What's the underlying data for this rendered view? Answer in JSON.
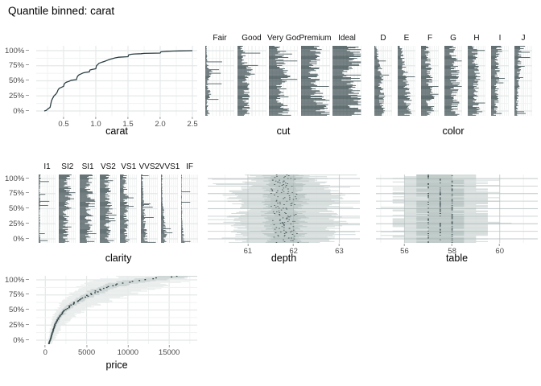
{
  "title": "Quantile binned: carat",
  "colors": {
    "bar": "#2c3e42",
    "line": "#2c3e42",
    "median": "#36464a",
    "grid_major": "#e4e8e8",
    "grid_minor": "#f1f3f3",
    "tick_text": "#4d4d4d",
    "title_text": "#000000"
  },
  "y_axis": {
    "labels": [
      "100%",
      "75%",
      "50%",
      "25%",
      "0%"
    ],
    "percent_ticks": [
      100,
      75,
      50,
      25,
      0
    ]
  },
  "chart_data": [
    {
      "id": "carat",
      "type": "line",
      "title": "carat",
      "x_ticks": [
        "0.5",
        "1.0",
        "1.5",
        "2.0",
        "2.5"
      ],
      "x_tick_values": [
        0.5,
        1.0,
        1.5,
        2.0,
        2.5
      ],
      "x_minor": [
        0.25,
        0.75,
        1.25,
        1.75,
        2.25
      ],
      "x_domain": [
        0.075,
        2.575
      ],
      "ylim": [
        0,
        100
      ],
      "points": [
        [
          0.2,
          0
        ],
        [
          0.23,
          1
        ],
        [
          0.25,
          3
        ],
        [
          0.29,
          6
        ],
        [
          0.3,
          11
        ],
        [
          0.31,
          16
        ],
        [
          0.32,
          19
        ],
        [
          0.33,
          21
        ],
        [
          0.34,
          23
        ],
        [
          0.35,
          25
        ],
        [
          0.36,
          26
        ],
        [
          0.38,
          28
        ],
        [
          0.4,
          31
        ],
        [
          0.41,
          34
        ],
        [
          0.42,
          36
        ],
        [
          0.44,
          38
        ],
        [
          0.46,
          39
        ],
        [
          0.5,
          41
        ],
        [
          0.51,
          45
        ],
        [
          0.53,
          47
        ],
        [
          0.55,
          48
        ],
        [
          0.58,
          49
        ],
        [
          0.6,
          50
        ],
        [
          0.62,
          51
        ],
        [
          0.7,
          52
        ],
        [
          0.71,
          56
        ],
        [
          0.72,
          58
        ],
        [
          0.74,
          60
        ],
        [
          0.76,
          61
        ],
        [
          0.8,
          63
        ],
        [
          0.84,
          64
        ],
        [
          0.9,
          65
        ],
        [
          0.91,
          68
        ],
        [
          0.95,
          69
        ],
        [
          1.0,
          70
        ],
        [
          1.01,
          75
        ],
        [
          1.03,
          77
        ],
        [
          1.05,
          79
        ],
        [
          1.1,
          81
        ],
        [
          1.13,
          82
        ],
        [
          1.2,
          85
        ],
        [
          1.23,
          86
        ],
        [
          1.3,
          88
        ],
        [
          1.35,
          89
        ],
        [
          1.5,
          90
        ],
        [
          1.51,
          93
        ],
        [
          1.55,
          94
        ],
        [
          1.6,
          94.5
        ],
        [
          1.7,
          95
        ],
        [
          1.75,
          95.5
        ],
        [
          2.0,
          96
        ],
        [
          2.01,
          98
        ],
        [
          2.05,
          98.5
        ],
        [
          2.1,
          99
        ],
        [
          2.2,
          99.3
        ],
        [
          2.3,
          99.6
        ],
        [
          2.5,
          100
        ]
      ]
    },
    {
      "id": "cut",
      "type": "facet_bar",
      "title": "cut",
      "facets": [
        {
          "label": "Fair",
          "profile": [
            0.12,
            0.08,
            0.06,
            0.18,
            0.07,
            0.06,
            0.22,
            0.08,
            0.05,
            0.04,
            0.04
          ]
        },
        {
          "label": "Good",
          "profile": [
            0.35,
            0.3,
            0.28,
            0.3,
            0.28,
            0.3,
            0.45,
            0.3,
            0.22,
            0.18,
            0.15
          ]
        },
        {
          "label": "Very Good",
          "profile": [
            0.6,
            0.5,
            0.45,
            0.48,
            0.45,
            0.48,
            0.55,
            0.45,
            0.4,
            0.35,
            0.3
          ]
        },
        {
          "label": "Premium",
          "profile": [
            0.9,
            0.75,
            0.65,
            0.55,
            0.5,
            0.45,
            0.42,
            0.45,
            0.5,
            0.55,
            0.6
          ]
        },
        {
          "label": "Ideal",
          "profile": [
            1.0,
            0.92,
            0.85,
            0.78,
            0.7,
            0.5,
            0.45,
            0.6,
            0.75,
            0.8,
            0.7
          ]
        }
      ]
    },
    {
      "id": "color",
      "type": "facet_bar",
      "title": "color",
      "facets": [
        {
          "label": "D",
          "profile": [
            0.45,
            0.42,
            0.4,
            0.42,
            0.4,
            0.38,
            0.35,
            0.3,
            0.25,
            0.16,
            0.08
          ]
        },
        {
          "label": "E",
          "profile": [
            0.6,
            0.55,
            0.52,
            0.5,
            0.48,
            0.45,
            0.42,
            0.38,
            0.3,
            0.22,
            0.14
          ]
        },
        {
          "label": "F",
          "profile": [
            0.55,
            0.52,
            0.5,
            0.52,
            0.5,
            0.48,
            0.45,
            0.42,
            0.4,
            0.35,
            0.3
          ]
        },
        {
          "label": "G",
          "profile": [
            0.6,
            0.58,
            0.6,
            0.62,
            0.6,
            0.58,
            0.6,
            0.55,
            0.5,
            0.48,
            0.45
          ]
        },
        {
          "label": "H",
          "profile": [
            0.45,
            0.48,
            0.5,
            0.48,
            0.5,
            0.52,
            0.48,
            0.45,
            0.42,
            0.4,
            0.38
          ]
        },
        {
          "label": "I",
          "profile": [
            0.25,
            0.27,
            0.3,
            0.3,
            0.32,
            0.35,
            0.33,
            0.36,
            0.38,
            0.45,
            0.55
          ]
        },
        {
          "label": "J",
          "profile": [
            0.12,
            0.14,
            0.16,
            0.18,
            0.2,
            0.22,
            0.24,
            0.26,
            0.3,
            0.38,
            0.45
          ]
        }
      ]
    },
    {
      "id": "clarity",
      "type": "facet_bar",
      "title": "clarity",
      "facets": [
        {
          "label": "I1",
          "profile": [
            0.08,
            0.06,
            0.05,
            0.06,
            0.05,
            0.06,
            0.08,
            0.06,
            0.05,
            0.08,
            0.1
          ]
        },
        {
          "label": "SI2",
          "profile": [
            0.45,
            0.4,
            0.38,
            0.4,
            0.42,
            0.45,
            0.5,
            0.55,
            0.5,
            0.45,
            0.55
          ]
        },
        {
          "label": "SI1",
          "profile": [
            0.6,
            0.55,
            0.52,
            0.55,
            0.58,
            0.6,
            0.65,
            0.6,
            0.55,
            0.5,
            0.55
          ]
        },
        {
          "label": "VS2",
          "profile": [
            0.5,
            0.48,
            0.45,
            0.48,
            0.5,
            0.52,
            0.55,
            0.5,
            0.45,
            0.4,
            0.45
          ]
        },
        {
          "label": "VS1",
          "profile": [
            0.35,
            0.33,
            0.35,
            0.36,
            0.38,
            0.4,
            0.38,
            0.35,
            0.3,
            0.28,
            0.3
          ]
        },
        {
          "label": "VVS2",
          "profile": [
            0.3,
            0.28,
            0.25,
            0.22,
            0.2,
            0.18,
            0.15,
            0.12,
            0.1,
            0.08,
            0.1
          ]
        },
        {
          "label": "VVS1",
          "profile": [
            0.28,
            0.25,
            0.22,
            0.18,
            0.15,
            0.12,
            0.1,
            0.08,
            0.06,
            0.05,
            0.06
          ]
        },
        {
          "label": "IF",
          "profile": [
            0.15,
            0.12,
            0.08,
            0.06,
            0.05,
            0.04,
            0.04,
            0.03,
            0.03,
            0.03,
            0.04
          ]
        }
      ]
    },
    {
      "id": "depth",
      "type": "interval",
      "title": "depth",
      "x_ticks": [
        "61",
        "62",
        "63"
      ],
      "x_tick_values": [
        61,
        62,
        63
      ],
      "x_minor": [
        60.5,
        61.5,
        62.5
      ],
      "x_domain": [
        60.12,
        63.45
      ],
      "snap": 0,
      "inner": [
        0.22,
        0.5
      ],
      "overlay": true,
      "span_colors": [
        "#d2dad8",
        "#b9c6c4"
      ],
      "lo_profile": [
        61.15,
        61.0,
        61.05,
        60.85,
        60.95,
        61.1,
        60.95,
        60.8,
        61.05,
        61.2,
        61.3
      ],
      "hi_profile": [
        62.45,
        62.55,
        62.6,
        62.8,
        62.6,
        62.5,
        62.7,
        62.85,
        62.5,
        62.35,
        62.3
      ],
      "median_profile": [
        61.85,
        61.8,
        61.78,
        61.8,
        61.82,
        61.78,
        61.8,
        61.82,
        61.8,
        61.78,
        61.8
      ]
    },
    {
      "id": "table",
      "type": "interval",
      "title": "table",
      "x_ticks": [
        "56",
        "58",
        "60"
      ],
      "x_tick_values": [
        56,
        58,
        60
      ],
      "x_minor": [
        55,
        57,
        59,
        61
      ],
      "x_domain": [
        54.8,
        61.6
      ],
      "snap": 0.5,
      "inner": [
        0.6,
        1.1
      ],
      "overlay": true,
      "span_colors": [
        "#d2dad8",
        "#b9c6c4"
      ],
      "lo_profile": [
        56.2,
        56.0,
        56.0,
        55.8,
        56.0,
        56.1,
        56.0,
        55.9,
        56.0,
        56.2,
        56.4
      ],
      "hi_profile": [
        58.9,
        59.2,
        59.3,
        59.5,
        59.2,
        59.0,
        59.3,
        59.4,
        59.0,
        58.9,
        58.7
      ],
      "median_profile": [
        57.5,
        57.5,
        57.5,
        57.6,
        57.5,
        57.4,
        57.5,
        57.6,
        57.5,
        57.4,
        57.2
      ]
    },
    {
      "id": "price",
      "type": "interval",
      "title": "price",
      "x_ticks": [
        "0",
        "5000",
        "10000",
        "15000"
      ],
      "x_tick_values": [
        0,
        5000,
        10000,
        15000
      ],
      "x_minor": [
        2500,
        7500,
        12500,
        17500
      ],
      "x_domain": [
        -1100,
        18400
      ],
      "snap": 0,
      "mul": true,
      "dots": true,
      "overlay": false,
      "span_colors": [
        "#e6ebe9",
        "#c9d3d1"
      ],
      "lo_profile": [
        250,
        420,
        560,
        700,
        900,
        1300,
        1900,
        2800,
        3800,
        5200,
        9000
      ],
      "hi_profile": [
        700,
        1200,
        1700,
        2300,
        3200,
        4600,
        6800,
        9500,
        12500,
        15500,
        17800
      ],
      "median_profile": [
        420,
        700,
        950,
        1250,
        1700,
        2400,
        3500,
        5000,
        6800,
        9500,
        16200
      ]
    }
  ]
}
